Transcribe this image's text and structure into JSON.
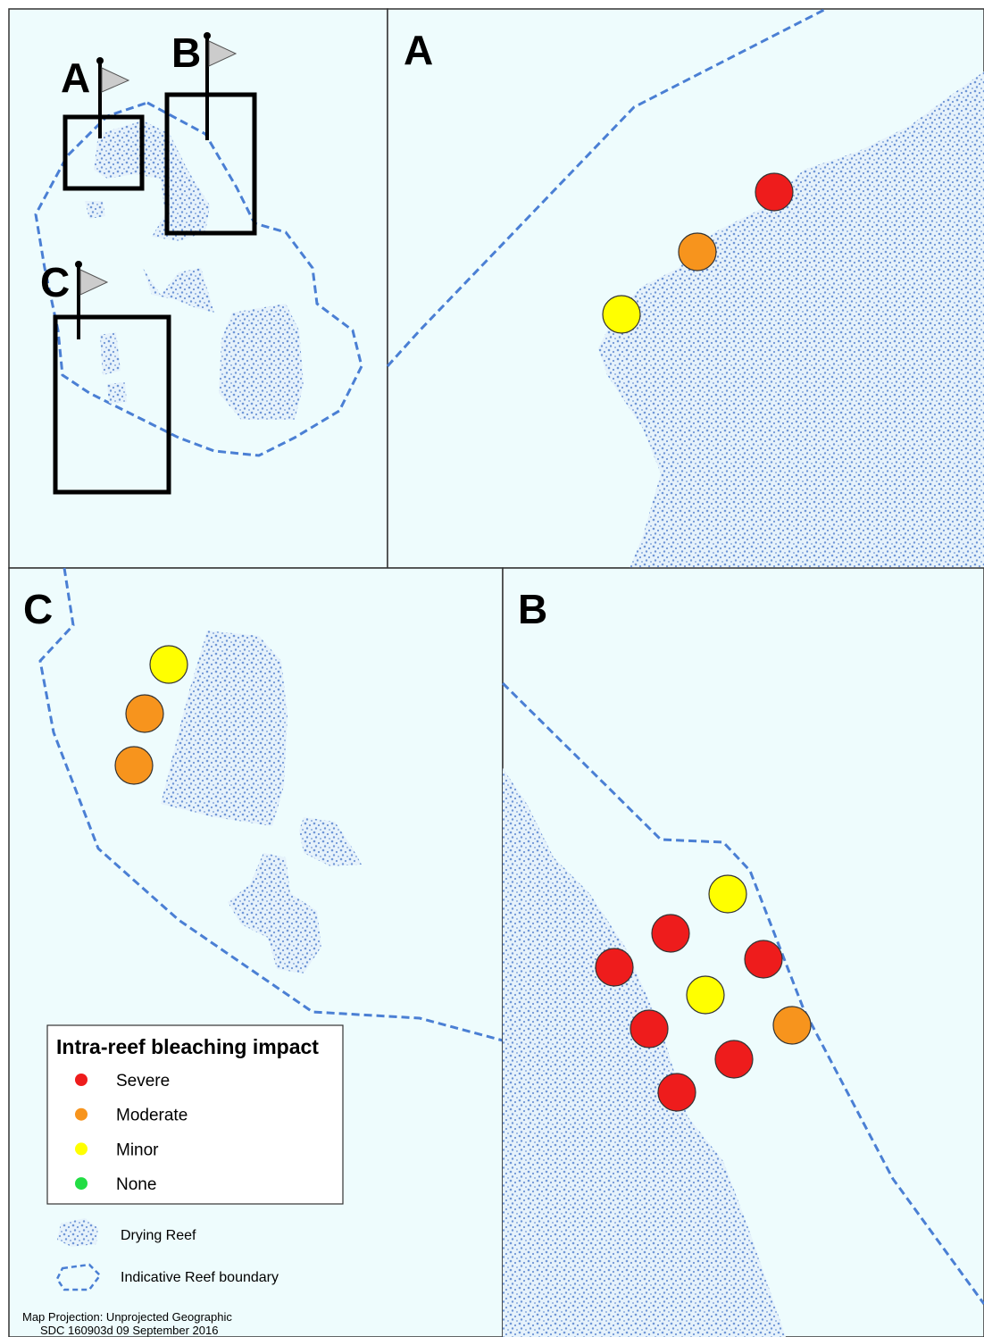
{
  "overview": {
    "labels": [
      "A",
      "B",
      "C"
    ]
  },
  "panels": {
    "a": "A",
    "c": "C",
    "b": "B"
  },
  "legend": {
    "title": "Intra-reef bleaching impact",
    "items": [
      {
        "label": "Severe",
        "color": "#ee1c1c"
      },
      {
        "label": "Moderate",
        "color": "#f7941d"
      },
      {
        "label": "Minor",
        "color": "#ffff00"
      },
      {
        "label": "None",
        "color": "#22dd44"
      }
    ],
    "drying_reef": "Drying Reef",
    "boundary": "Indicative Reef boundary"
  },
  "footer": [
    "Map Projection:  Unprojected Geographic",
    "SDC 160903d  09 September 2016"
  ]
}
